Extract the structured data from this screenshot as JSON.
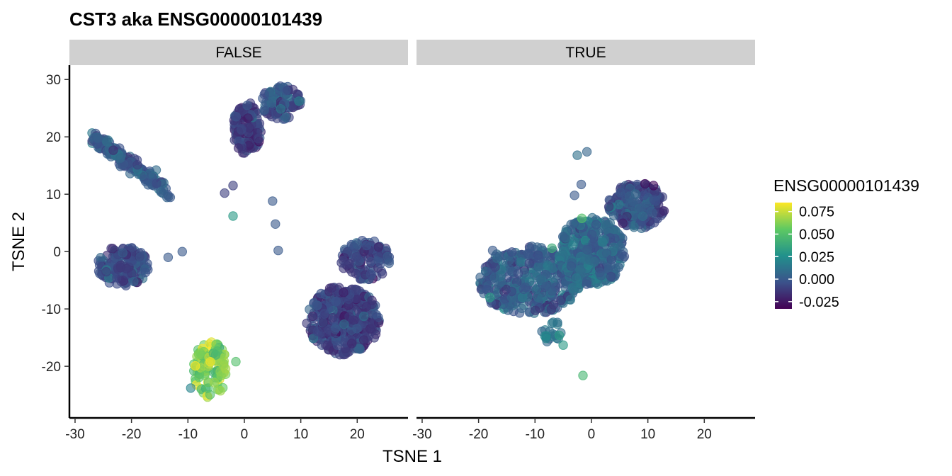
{
  "chart_data": {
    "type": "scatter",
    "title": "CST3  aka ENSG00000101439",
    "xlabel": "TSNE 1",
    "ylabel": "TSNE 2",
    "facets": [
      "FALSE",
      "TRUE"
    ],
    "xlim": [
      -31,
      29
    ],
    "ylim": [
      -29,
      32.5
    ],
    "x_ticks": [
      -30,
      -20,
      -10,
      0,
      10,
      20
    ],
    "y_ticks": [
      -20,
      -10,
      0,
      10,
      20,
      30
    ],
    "grid": false,
    "legend": {
      "title": "ENSG00000101439",
      "placement": "right",
      "limits": [
        -0.033,
        0.085
      ],
      "ticks": [
        "0.075",
        "0.050",
        "0.025",
        "0.000",
        "-0.025"
      ],
      "tick_values": [
        0.075,
        0.05,
        0.025,
        0.0,
        -0.025
      ],
      "colors": [
        "#440154",
        "#3b528b",
        "#21918c",
        "#5ec962",
        "#fde725"
      ]
    },
    "clusters": [
      {
        "facet": "FALSE",
        "x": [
          -27,
          -13
        ],
        "y": [
          10,
          20
        ],
        "shape": "band",
        "n": 180,
        "spread": 1.3,
        "value_mean": 0.0,
        "value_sd": 0.008
      },
      {
        "facet": "FALSE",
        "x": [
          -26,
          -17
        ],
        "y": [
          -6,
          1
        ],
        "shape": "blob",
        "n": 170,
        "value_mean": -0.005,
        "value_sd": 0.008
      },
      {
        "facet": "FALSE",
        "x": [
          -2,
          3
        ],
        "y": [
          17,
          26
        ],
        "shape": "blob",
        "n": 140,
        "value_mean": -0.012,
        "value_sd": 0.008
      },
      {
        "facet": "FALSE",
        "x": [
          3,
          10
        ],
        "y": [
          23,
          29
        ],
        "shape": "blob",
        "n": 110,
        "value_mean": -0.002,
        "value_sd": 0.008
      },
      {
        "facet": "FALSE",
        "x": [
          11,
          24
        ],
        "y": [
          -18,
          -6
        ],
        "shape": "blob",
        "n": 380,
        "value_mean": -0.01,
        "value_sd": 0.008
      },
      {
        "facet": "FALSE",
        "x": [
          17,
          26
        ],
        "y": [
          -5,
          2
        ],
        "shape": "blob",
        "n": 120,
        "value_mean": -0.008,
        "value_sd": 0.008
      },
      {
        "facet": "FALSE",
        "x": [
          -9,
          -3
        ],
        "y": [
          -25.5,
          -15.5
        ],
        "shape": "blob",
        "n": 110,
        "value_mean": 0.062,
        "value_sd": 0.012
      },
      {
        "facet": "TRUE",
        "x": [
          -20,
          -2
        ],
        "y": [
          -11,
          1
        ],
        "shape": "blob",
        "n": 400,
        "value_mean": 0.002,
        "value_sd": 0.008
      },
      {
        "facet": "TRUE",
        "x": [
          -6,
          6
        ],
        "y": [
          -6,
          6
        ],
        "shape": "blob",
        "n": 400,
        "value_mean": 0.006,
        "value_sd": 0.008
      },
      {
        "facet": "TRUE",
        "x": [
          3,
          13
        ],
        "y": [
          4,
          12
        ],
        "shape": "blob",
        "n": 200,
        "value_mean": -0.004,
        "value_sd": 0.009
      },
      {
        "facet": "TRUE",
        "x": [
          -9,
          -5
        ],
        "y": [
          -16,
          -12
        ],
        "shape": "blob",
        "n": 20,
        "value_mean": 0.012,
        "value_sd": 0.006
      }
    ],
    "points": [
      {
        "facet": "FALSE",
        "x": -3.5,
        "y": 10.2,
        "value": -0.01
      },
      {
        "facet": "FALSE",
        "x": -2,
        "y": 11.5,
        "value": -0.01
      },
      {
        "facet": "FALSE",
        "x": -2,
        "y": 6.2,
        "value": 0.03
      },
      {
        "facet": "FALSE",
        "x": 5,
        "y": 8.8,
        "value": 0.0
      },
      {
        "facet": "FALSE",
        "x": 5.5,
        "y": 4.8,
        "value": 0.0
      },
      {
        "facet": "FALSE",
        "x": 6,
        "y": 0.2,
        "value": 0.0
      },
      {
        "facet": "FALSE",
        "x": -11,
        "y": 0,
        "value": 0.0
      },
      {
        "facet": "FALSE",
        "x": -13.5,
        "y": -1,
        "value": 0.0
      },
      {
        "facet": "FALSE",
        "x": -1.5,
        "y": -19.2,
        "value": 0.05
      },
      {
        "facet": "FALSE",
        "x": -9.5,
        "y": -23.8,
        "value": 0.02
      },
      {
        "facet": "FALSE",
        "x": 20,
        "y": 1.3,
        "value": 0.0
      },
      {
        "facet": "TRUE",
        "x": -2.5,
        "y": 16.8,
        "value": 0.01
      },
      {
        "facet": "TRUE",
        "x": -0.8,
        "y": 17.4,
        "value": 0.005
      },
      {
        "facet": "TRUE",
        "x": -1.8,
        "y": 11.7,
        "value": 0.0
      },
      {
        "facet": "TRUE",
        "x": -3,
        "y": 9.8,
        "value": 0.0
      },
      {
        "facet": "TRUE",
        "x": -1.7,
        "y": 5.8,
        "value": 0.05
      },
      {
        "facet": "TRUE",
        "x": -7,
        "y": 0.6,
        "value": 0.04
      },
      {
        "facet": "TRUE",
        "x": -1.5,
        "y": -21.6,
        "value": 0.045
      },
      {
        "facet": "TRUE",
        "x": -5,
        "y": -16.3,
        "value": 0.03
      },
      {
        "facet": "TRUE",
        "x": -5.7,
        "y": -14.6,
        "value": 0.03
      },
      {
        "facet": "TRUE",
        "x": -17.5,
        "y": 0.2,
        "value": 0.0
      },
      {
        "facet": "TRUE",
        "x": -18,
        "y": -8,
        "value": 0.03
      },
      {
        "facet": "TRUE",
        "x": 9.5,
        "y": 11.8,
        "value": -0.03
      },
      {
        "facet": "TRUE",
        "x": 11,
        "y": 11.5,
        "value": -0.03
      }
    ]
  }
}
